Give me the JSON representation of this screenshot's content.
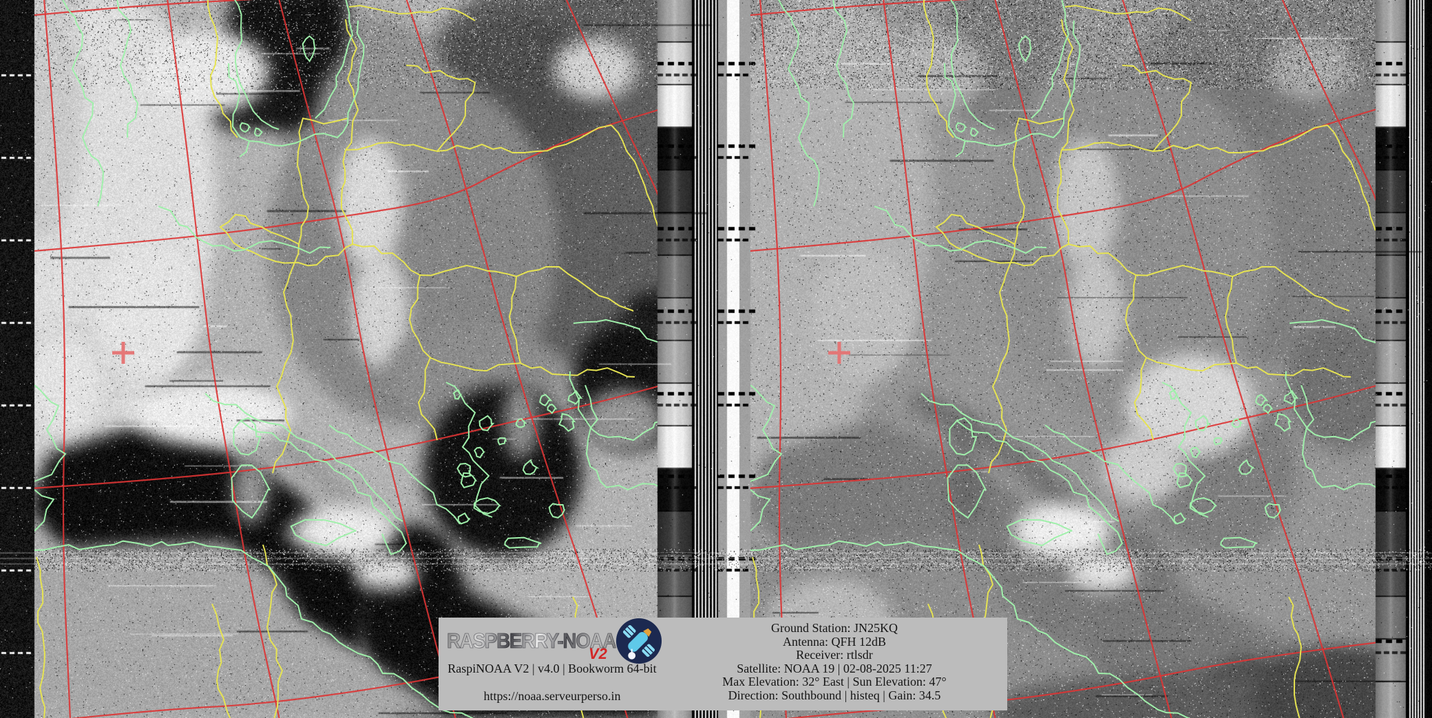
{
  "overlay": {
    "branding": {
      "logo_text": "RASPBERRY-NOAA",
      "logo_version": "V2",
      "build_info": "RaspiNOAA V2 | v4.0 | Bookworm 64-bit",
      "website": "https://noaa.serveurperso.in"
    },
    "station": {
      "lines": [
        "Ground Station: JN25KQ",
        "Antenna: QFH 12dB",
        "Receiver: rtlsdr",
        "Satellite: NOAA 19 | 02-08-2025 11:27",
        "Max Elevation: 32° East | Sun Elevation: 47°",
        "Direction: Southbound | histeq | Gain: 34.5"
      ]
    }
  },
  "colors": {
    "border_yellow": "#e6e352",
    "coastline_green": "#a0f0ab",
    "grid_red": "#dd3434",
    "marker_red": "#e57272",
    "overlay_background": "#bcbcbc",
    "overlay_text": "#151515",
    "logo_navy": "#1c2950",
    "logo_red": "#d32626",
    "logo_cyan": "#5fc9e9",
    "logo_panel_blue": "#8adcf4",
    "logo_orange": "#e2a23b"
  }
}
